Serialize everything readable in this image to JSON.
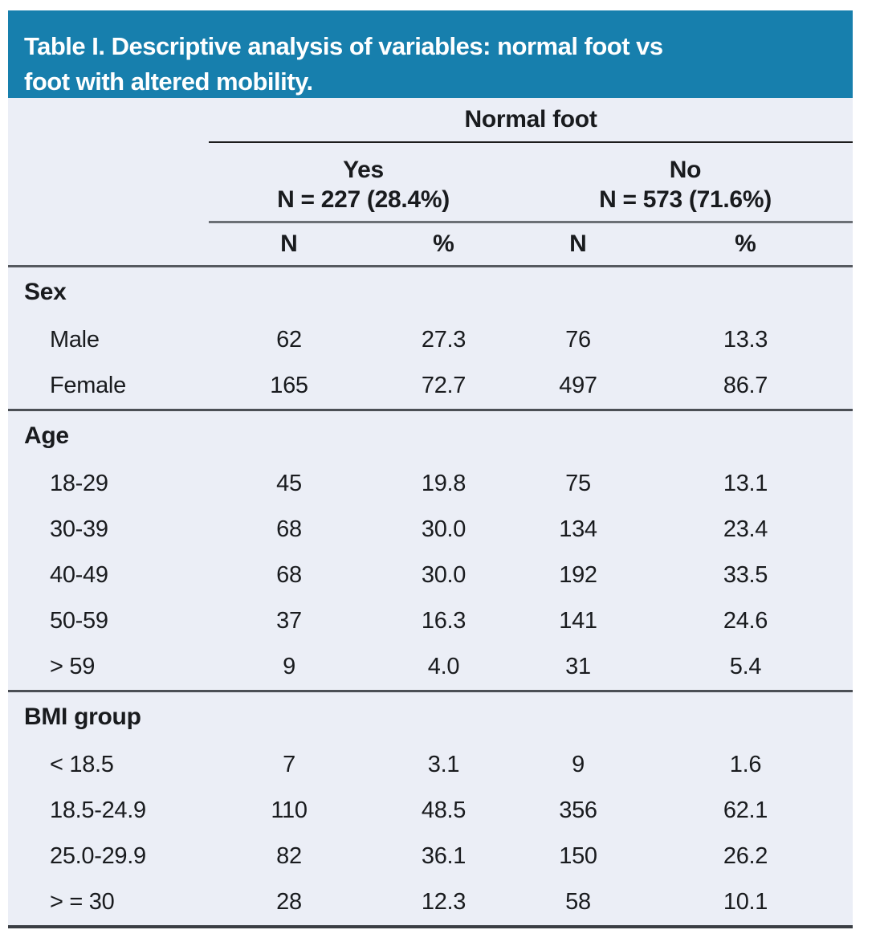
{
  "colors": {
    "banner_blue": "#177FAD",
    "table_background": "#EBEEF6",
    "text": "#191B1E"
  },
  "chart_data": {
    "type": "table",
    "title": "Table I. Descriptive analysis of variables: normal foot vs\nfoot with altered mobility.",
    "group_header": "Normal foot",
    "groups": [
      {
        "label": "Yes",
        "count": "N = 227 (28.4%)"
      },
      {
        "label": "No",
        "count": "N = 573 (71.6%)"
      }
    ],
    "columns": [
      "N",
      "%",
      "N",
      "%"
    ],
    "sections": [
      {
        "label": "Sex",
        "rows": [
          {
            "label": "Male",
            "values": [
              "62",
              "27.3",
              "76",
              "13.3"
            ]
          },
          {
            "label": "Female",
            "values": [
              "165",
              "72.7",
              "497",
              "86.7"
            ]
          }
        ]
      },
      {
        "label": "Age",
        "rows": [
          {
            "label": "18-29",
            "values": [
              "45",
              "19.8",
              "75",
              "13.1"
            ]
          },
          {
            "label": "30-39",
            "values": [
              "68",
              "30.0",
              "134",
              "23.4"
            ]
          },
          {
            "label": "40-49",
            "values": [
              "68",
              "30.0",
              "192",
              "33.5"
            ]
          },
          {
            "label": "50-59",
            "values": [
              "37",
              "16.3",
              "141",
              "24.6"
            ]
          },
          {
            "label": "> 59",
            "values": [
              "9",
              "4.0",
              "31",
              "5.4"
            ]
          }
        ]
      },
      {
        "label": "BMI group",
        "rows": [
          {
            "label": "< 18.5",
            "values": [
              "7",
              "3.1",
              "9",
              "1.6"
            ]
          },
          {
            "label": "18.5-24.9",
            "values": [
              "110",
              "48.5",
              "356",
              "62.1"
            ]
          },
          {
            "label": "25.0-29.9",
            "values": [
              "82",
              "36.1",
              "150",
              "26.2"
            ]
          },
          {
            "label": "> = 30",
            "values": [
              "28",
              "12.3",
              "58",
              "10.1"
            ]
          }
        ]
      }
    ]
  }
}
